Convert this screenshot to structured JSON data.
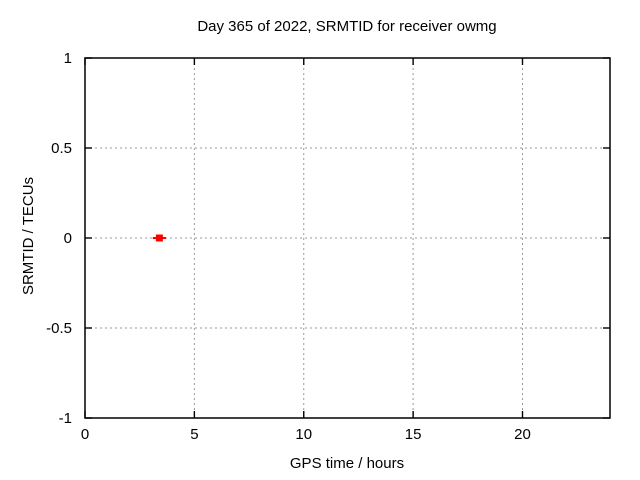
{
  "window": {
    "background": "#ffffff"
  },
  "chart_data": {
    "type": "scatter",
    "title": "Day 365 of 2022, SRMTID for receiver owmg",
    "xlabel": "GPS time / hours",
    "ylabel": "SRMTID / TECUs",
    "xlim": [
      0,
      24
    ],
    "ylim": [
      -1,
      1
    ],
    "xticks": [
      0,
      5,
      10,
      15,
      20
    ],
    "yticks": [
      1,
      0.5,
      0,
      -0.5,
      -1
    ],
    "grid": true,
    "legend": "none",
    "series": [
      {
        "name": "SRMTID",
        "marker": "filled-square",
        "color": "#ff0000",
        "points": [
          {
            "x": 3.4,
            "y": 0.0,
            "xerr": 0.3
          }
        ]
      }
    ]
  },
  "style": {
    "border_color": "#000000",
    "grid_color": "#999999",
    "text_color": "#000000",
    "background": "#ffffff"
  }
}
